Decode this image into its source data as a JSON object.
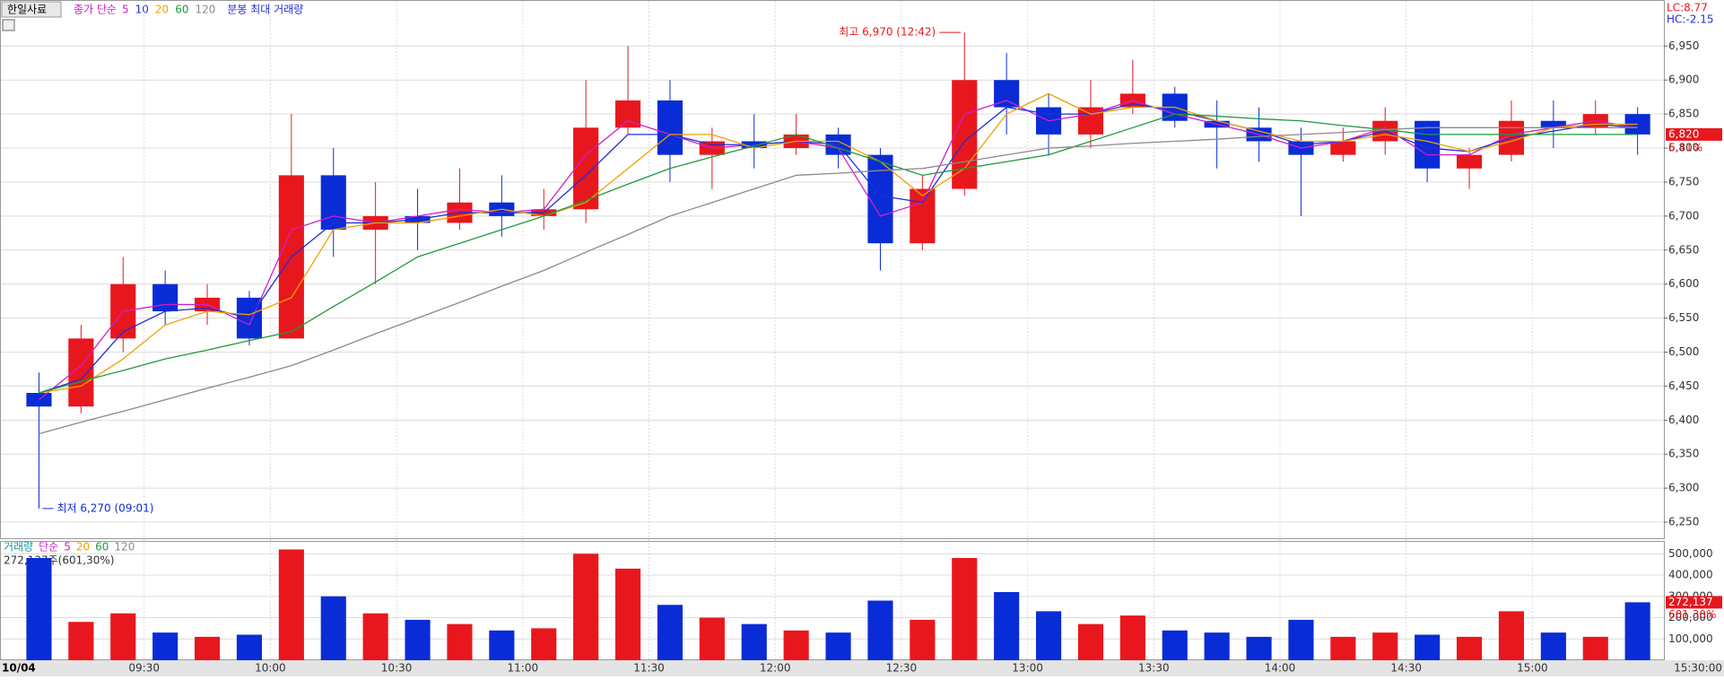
{
  "header": {
    "stock": "한일사료",
    "ma_legend": "종가 단순",
    "max_volume_legend": "분봉 최대 거래량",
    "lc": "LC:8.77",
    "hc": "HC:-2.15"
  },
  "chart_data": [
    {
      "type": "candlestick",
      "categories": [
        null,
        null,
        null,
        "09:30",
        null,
        null,
        "10:00",
        null,
        null,
        "10:30",
        null,
        null,
        "11:00",
        null,
        null,
        "11:30",
        null,
        null,
        "12:00",
        null,
        null,
        "12:30",
        null,
        null,
        "13:00",
        null,
        null,
        "13:30",
        null,
        null,
        "14:00",
        null,
        null,
        "14:30",
        null,
        null,
        "15:00",
        null,
        null
      ],
      "date_label": "10/04",
      "end_label": "15:30:00",
      "open": [
        6440,
        6420,
        6520,
        6600,
        6560,
        6580,
        6520,
        6760,
        6680,
        6700,
        6690,
        6720,
        6700,
        6710,
        6830,
        6870,
        6790,
        6810,
        6800,
        6820,
        6790,
        6660,
        6740,
        6900,
        6860,
        6820,
        6860,
        6880,
        6840,
        6830,
        6810,
        6790,
        6810,
        6840,
        6770,
        6790,
        6840,
        6830,
        6850
      ],
      "high": [
        6470,
        6540,
        6640,
        6620,
        6600,
        6590,
        6850,
        6800,
        6750,
        6740,
        6770,
        6760,
        6740,
        6900,
        6950,
        6900,
        6830,
        6850,
        6850,
        6830,
        6800,
        6760,
        6970,
        6940,
        6880,
        6900,
        6930,
        6890,
        6870,
        6860,
        6830,
        6830,
        6860,
        6840,
        6800,
        6870,
        6870,
        6870,
        6860
      ],
      "low": [
        6270,
        6410,
        6500,
        6540,
        6540,
        6510,
        6520,
        6640,
        6600,
        6650,
        6680,
        6670,
        6680,
        6690,
        6820,
        6750,
        6740,
        6770,
        6790,
        6770,
        6620,
        6650,
        6730,
        6820,
        6790,
        6800,
        6850,
        6830,
        6770,
        6780,
        6700,
        6780,
        6790,
        6750,
        6740,
        6780,
        6800,
        6820,
        6790
      ],
      "close": [
        6420,
        6520,
        6600,
        6560,
        6580,
        6520,
        6760,
        6680,
        6700,
        6690,
        6720,
        6700,
        6710,
        6830,
        6870,
        6790,
        6810,
        6800,
        6820,
        6790,
        6660,
        6740,
        6900,
        6860,
        6820,
        6860,
        6880,
        6840,
        6830,
        6810,
        6790,
        6810,
        6840,
        6770,
        6790,
        6840,
        6830,
        6850,
        6820
      ],
      "up_color": "#e8171d",
      "down_color": "#0a2cd6",
      "series": [
        {
          "name": "5",
          "color": "#d01fc8",
          "values": [
            6430,
            6480,
            6560,
            6570,
            6570,
            6540,
            6680,
            6700,
            6690,
            6700,
            6710,
            6705,
            6710,
            6790,
            6840,
            6820,
            6800,
            6805,
            6810,
            6800,
            6700,
            6720,
            6850,
            6870,
            6840,
            6850,
            6870,
            6850,
            6835,
            6820,
            6800,
            6810,
            6830,
            6790,
            6790,
            6820,
            6830,
            6840,
            6830
          ]
        },
        {
          "name": "10",
          "color": "#1f2fd6",
          "values": [
            6440,
            6460,
            6530,
            6560,
            6565,
            6550,
            6640,
            6690,
            6690,
            6695,
            6705,
            6705,
            6705,
            6760,
            6820,
            6820,
            6805,
            6805,
            6810,
            6805,
            6730,
            6720,
            6810,
            6860,
            6850,
            6850,
            6865,
            6855,
            6840,
            6825,
            6805,
            6810,
            6825,
            6800,
            6795,
            6815,
            6825,
            6835,
            6830
          ]
        },
        {
          "name": "20",
          "color": "#f0a000",
          "values": [
            6440,
            6450,
            6490,
            6540,
            6560,
            6555,
            6580,
            6680,
            6690,
            6690,
            6700,
            6710,
            6700,
            6720,
            6770,
            6820,
            6820,
            6800,
            6810,
            6810,
            6780,
            6730,
            6770,
            6850,
            6880,
            6850,
            6860,
            6860,
            6840,
            6825,
            6810,
            6810,
            6820,
            6810,
            6795,
            6810,
            6830,
            6835,
            6835
          ]
        },
        {
          "name": "60",
          "color": "#1f9a3a",
          "values": [
            6440,
            6457,
            6473,
            6490,
            6503,
            6517,
            6530,
            6567,
            6603,
            6640,
            6660,
            6680,
            6700,
            6723,
            6747,
            6770,
            6787,
            6803,
            6820,
            6800,
            6780,
            6760,
            6770,
            6780,
            6790,
            6810,
            6830,
            6850,
            6847,
            6843,
            6840,
            6833,
            6827,
            6820,
            6820,
            6820,
            6820,
            6820,
            6820
          ]
        },
        {
          "name": "120",
          "color": "#8a8a8a",
          "values": [
            6380,
            6397,
            6413,
            6430,
            6447,
            6463,
            6480,
            6503,
            6527,
            6550,
            6573,
            6597,
            6620,
            6647,
            6673,
            6700,
            6720,
            6740,
            6760,
            6763,
            6767,
            6770,
            6780,
            6790,
            6800,
            6803,
            6807,
            6810,
            6813,
            6817,
            6820,
            6823,
            6827,
            6830,
            6830,
            6830,
            6830,
            6830,
            6830
          ]
        }
      ],
      "ylim": [
        6225,
        6990
      ],
      "yticks": [
        {
          "value": 6250,
          "label": "6,250"
        },
        {
          "value": 6300,
          "label": "6,300"
        },
        {
          "value": 6350,
          "label": "6,350"
        },
        {
          "value": 6400,
          "label": "6,400"
        },
        {
          "value": 6450,
          "label": "6,450"
        },
        {
          "value": 6500,
          "label": "6,500"
        },
        {
          "value": 6550,
          "label": "6,550"
        },
        {
          "value": 6600,
          "label": "6,600"
        },
        {
          "value": 6650,
          "label": "6,650"
        },
        {
          "value": 6700,
          "label": "6,700"
        },
        {
          "value": 6750,
          "label": "6,750"
        },
        {
          "value": 6800,
          "label": "6,800"
        },
        {
          "value": 6850,
          "label": "6,850"
        },
        {
          "value": 6900,
          "label": "6,900"
        },
        {
          "value": 6950,
          "label": "6,950"
        }
      ],
      "grid": true,
      "annotations": [
        {
          "value": 6970,
          "label": "최고 6,970 (12:42)",
          "index": 22,
          "side": "left",
          "color": "#e8171d"
        },
        {
          "value": 6270,
          "label": "최저 6,270 (09:01)",
          "index": 0,
          "side": "right",
          "color": "#0a2cd6"
        }
      ],
      "last_price": {
        "value": 6820,
        "label": "6,820"
      },
      "change_label": "5.41%"
    },
    {
      "type": "bar",
      "legend": [
        "거래량",
        "단순",
        "5",
        "20",
        "60",
        "120"
      ],
      "legend_colors": [
        "#1f9a9a",
        "#d01fc8",
        "#d01fc8",
        "#f0a000",
        "#1f9a3a",
        "#8a8a8a"
      ],
      "info": "272,137주(601,30%)",
      "values": [
        480000,
        180000,
        220000,
        130000,
        110000,
        120000,
        520000,
        300000,
        220000,
        190000,
        170000,
        140000,
        150000,
        500000,
        430000,
        260000,
        200000,
        170000,
        140000,
        130000,
        280000,
        190000,
        480000,
        320000,
        230000,
        170000,
        210000,
        140000,
        130000,
        110000,
        190000,
        110000,
        130000,
        120000,
        110000,
        230000,
        130000,
        110000,
        272137
      ],
      "ylim": [
        0,
        560000
      ],
      "yticks": [
        {
          "value": 100000,
          "label": "100,000"
        },
        {
          "value": 200000,
          "label": "200,000"
        },
        {
          "value": 300000,
          "label": "300,000"
        },
        {
          "value": 400000,
          "label": "400,000"
        },
        {
          "value": 500000,
          "label": "500,000"
        }
      ],
      "last_volume": {
        "value": 272137,
        "label": "272,137"
      },
      "ratio_label": "601.30%"
    }
  ]
}
